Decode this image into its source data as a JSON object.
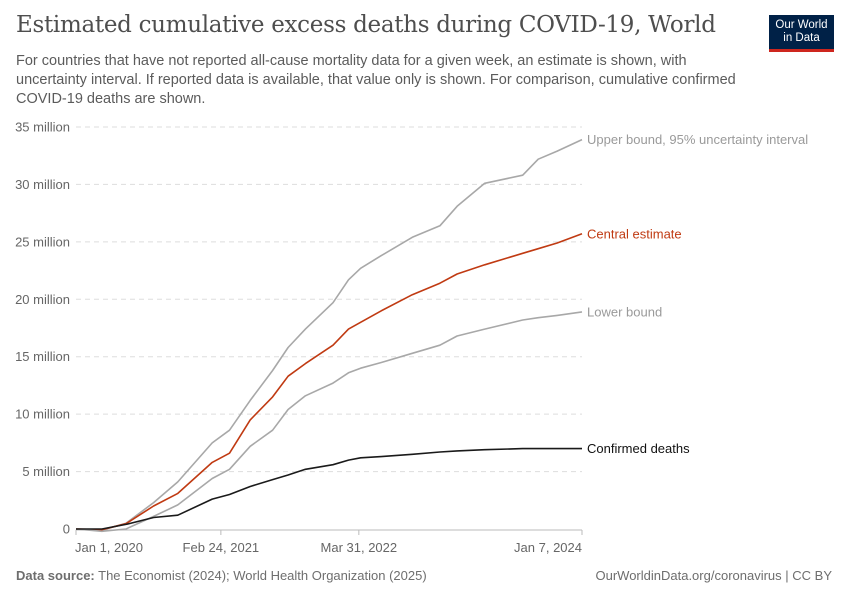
{
  "header": {
    "title": "Estimated cumulative excess deaths during COVID-19, World",
    "subtitle": "For countries that have not reported all-cause mortality data for a given week, an estimate is shown, with uncertainty interval. If reported data is available, that value only is shown. For comparison, cumulative confirmed COVID-19 deaths are shown.",
    "logo": "Our World in Data"
  },
  "footer": {
    "source_label": "Data source:",
    "source": " The Economist (2024); World Health Organization (2025)",
    "url": "OurWorldinData.org/coronavirus | CC BY"
  },
  "chart_data": {
    "type": "line",
    "title": "Estimated cumulative excess deaths during COVID-19, World",
    "xlabel": "",
    "ylabel": "",
    "xlim": [
      "2020-01-01",
      "2024-01-07"
    ],
    "ylim": [
      0,
      35000000
    ],
    "grid": "horizontal dashed",
    "legend": "right (line-end labels)",
    "x_ticks": [
      {
        "date": "2020-01-01",
        "label": "Jan 1, 2020"
      },
      {
        "date": "2021-02-24",
        "label": "Feb 24, 2021"
      },
      {
        "date": "2022-03-31",
        "label": "Mar 31, 2022"
      },
      {
        "date": "2024-01-07",
        "label": "Jan 7, 2024"
      }
    ],
    "y_ticks": [
      {
        "value": 0,
        "label": "0"
      },
      {
        "value": 5000000,
        "label": "5 million"
      },
      {
        "value": 10000000,
        "label": "10 million"
      },
      {
        "value": 15000000,
        "label": "15 million"
      },
      {
        "value": 20000000,
        "label": "20 million"
      },
      {
        "value": 25000000,
        "label": "25 million"
      },
      {
        "value": 30000000,
        "label": "30 million"
      },
      {
        "value": 35000000,
        "label": "35 million"
      }
    ],
    "x": [
      "2020-01-01",
      "2020-03-16",
      "2020-05-25",
      "2020-08-13",
      "2020-10-22",
      "2021-01-30",
      "2021-03-21",
      "2021-05-20",
      "2021-07-24",
      "2021-09-07",
      "2021-10-27",
      "2022-01-15",
      "2022-03-01",
      "2022-04-05",
      "2022-06-04",
      "2022-09-02",
      "2022-11-21",
      "2023-01-10",
      "2023-03-31",
      "2023-07-19",
      "2023-09-02",
      "2023-10-27",
      "2024-01-07"
    ],
    "series": [
      {
        "name": "Upper bound, 95% uncertainty interval",
        "color": "#a8a8a8",
        "values": [
          0,
          -100000,
          500000,
          2300000,
          4100000,
          7500000,
          8600000,
          11200000,
          13800000,
          15800000,
          17400000,
          19700000,
          21700000,
          22700000,
          23800000,
          25400000,
          26400000,
          28100000,
          30100000,
          30800000,
          32200000,
          32900000,
          33900000
        ]
      },
      {
        "name": "Central estimate",
        "color": "#c03a12",
        "values": [
          0,
          -60000,
          460000,
          2000000,
          3100000,
          5800000,
          6600000,
          9500000,
          11500000,
          13300000,
          14400000,
          16000000,
          17400000,
          18000000,
          19000000,
          20400000,
          21400000,
          22200000,
          23000000,
          24000000,
          24400000,
          24900000,
          25700000
        ]
      },
      {
        "name": "Lower bound",
        "color": "#a8a8a8",
        "values": [
          0,
          -200000,
          0,
          1100000,
          2100000,
          4400000,
          5200000,
          7200000,
          8600000,
          10400000,
          11600000,
          12700000,
          13600000,
          14000000,
          14500000,
          15300000,
          16000000,
          16800000,
          17400000,
          18200000,
          18400000,
          18600000,
          18900000
        ]
      },
      {
        "name": "Confirmed deaths",
        "color": "#1a1a1a",
        "values": [
          0,
          0,
          400000,
          1000000,
          1200000,
          2600000,
          3000000,
          3700000,
          4300000,
          4700000,
          5200000,
          5600000,
          6000000,
          6200000,
          6300000,
          6500000,
          6700000,
          6800000,
          6900000,
          7000000,
          7000000,
          7000000,
          7000000
        ]
      }
    ]
  }
}
